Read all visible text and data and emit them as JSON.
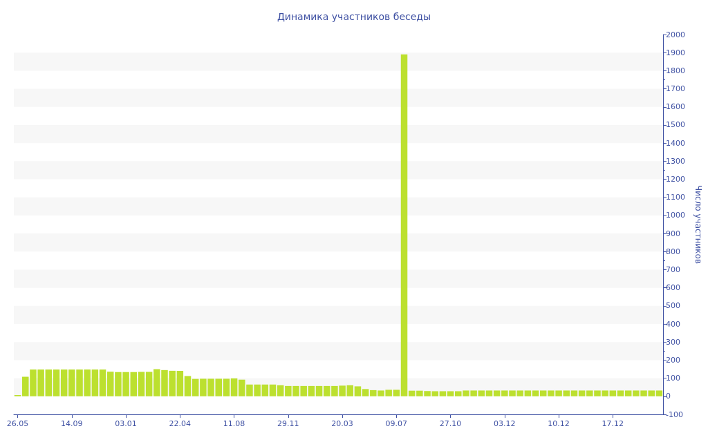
{
  "chart_data": {
    "type": "bar",
    "title": "Динамика участников беседы",
    "ylabel": "Число участников",
    "color": "#bce02f",
    "categories": [
      "26.05",
      null,
      null,
      null,
      null,
      null,
      null,
      "14.09",
      null,
      null,
      null,
      null,
      null,
      null,
      "03.01",
      null,
      null,
      null,
      null,
      null,
      null,
      "22.04",
      null,
      null,
      null,
      null,
      null,
      null,
      "11.08",
      null,
      null,
      null,
      null,
      null,
      null,
      "29.11",
      null,
      null,
      null,
      null,
      null,
      null,
      "20.03",
      null,
      null,
      null,
      null,
      null,
      null,
      "09.07",
      null,
      null,
      null,
      null,
      null,
      null,
      "27.10",
      null,
      null,
      null,
      null,
      null,
      null,
      "03.12",
      null,
      null,
      null,
      null,
      null,
      null,
      "10.12",
      null,
      null,
      null,
      null,
      null,
      null,
      "17.12",
      null,
      null,
      null,
      null,
      null,
      null
    ],
    "values": [
      7,
      108,
      148,
      148,
      148,
      148,
      148,
      148,
      148,
      148,
      148,
      148,
      136,
      134,
      134,
      134,
      135,
      135,
      150,
      145,
      141,
      141,
      112,
      96,
      97,
      97,
      97,
      97,
      99,
      92,
      65,
      65,
      65,
      65,
      61,
      57,
      57,
      57,
      57,
      57,
      57,
      57,
      59,
      61,
      55,
      40,
      34,
      32,
      36,
      36,
      1890,
      31,
      31,
      29,
      28,
      28,
      28,
      28,
      32,
      32,
      32,
      32,
      32,
      32,
      32,
      32,
      32,
      32,
      32,
      32,
      32,
      32,
      32,
      32,
      32,
      32,
      32,
      32,
      32,
      32,
      32,
      32,
      32,
      32
    ],
    "ylim": [
      -100,
      2000
    ],
    "yticks": [
      -100,
      0,
      100,
      200,
      300,
      400,
      500,
      600,
      700,
      800,
      900,
      1000,
      1100,
      1200,
      1300,
      1400,
      1500,
      1600,
      1700,
      1800,
      1900,
      2000
    ]
  }
}
